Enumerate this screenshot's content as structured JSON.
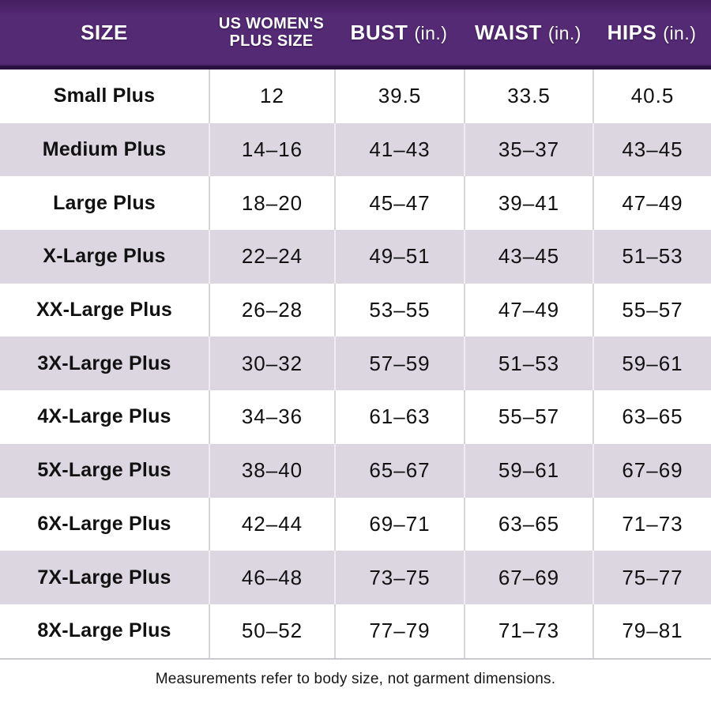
{
  "colors": {
    "header_bg": "#542a74",
    "header_bg_dark_top": "#451f60",
    "header_border_bottom": "#2a1240",
    "header_text": "#ffffff",
    "row_bg": "#ffffff",
    "row_alt_bg": "#dbd6e0",
    "divider_gray": "#d8d6da",
    "table_bottom_border": "#cbc9ce",
    "text": "#111111"
  },
  "chart_data": {
    "type": "table",
    "title": "",
    "columns": [
      {
        "label": "SIZE",
        "line2": "",
        "unit": ""
      },
      {
        "label": "US WOMEN'S",
        "line2": "PLUS SIZE",
        "unit": ""
      },
      {
        "label": "BUST",
        "line2": "",
        "unit": "(in.)"
      },
      {
        "label": "WAIST",
        "line2": "",
        "unit": "(in.)"
      },
      {
        "label": "HIPS",
        "line2": "",
        "unit": "(in.)"
      }
    ],
    "rows": [
      [
        "Small Plus",
        "12",
        "39.5",
        "33.5",
        "40.5"
      ],
      [
        "Medium Plus",
        "14–16",
        "41–43",
        "35–37",
        "43–45"
      ],
      [
        "Large Plus",
        "18–20",
        "45–47",
        "39–41",
        "47–49"
      ],
      [
        "X-Large Plus",
        "22–24",
        "49–51",
        "43–45",
        "51–53"
      ],
      [
        "XX-Large Plus",
        "26–28",
        "53–55",
        "47–49",
        "55–57"
      ],
      [
        "3X-Large Plus",
        "30–32",
        "57–59",
        "51–53",
        "59–61"
      ],
      [
        "4X-Large Plus",
        "34–36",
        "61–63",
        "55–57",
        "63–65"
      ],
      [
        "5X-Large Plus",
        "38–40",
        "65–67",
        "59–61",
        "67–69"
      ],
      [
        "6X-Large Plus",
        "42–44",
        "69–71",
        "63–65",
        "71–73"
      ],
      [
        "7X-Large Plus",
        "46–48",
        "73–75",
        "67–69",
        "75–77"
      ],
      [
        "8X-Large Plus",
        "50–52",
        "77–79",
        "71–73",
        "79–81"
      ]
    ],
    "footnote": "Measurements refer to body size, not garment dimensions."
  }
}
